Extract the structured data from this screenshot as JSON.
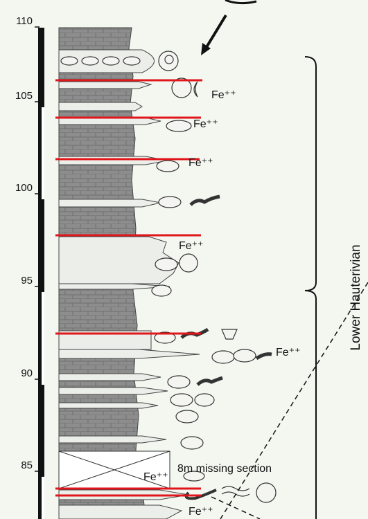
{
  "axis": {
    "ticks": [
      110,
      105,
      100,
      95,
      90,
      85
    ]
  },
  "annotations": {
    "fe": [
      "Fe⁺⁺",
      "Fe⁺⁺",
      "Fe⁺⁺",
      "Fe⁺⁺",
      "Fe⁺⁺",
      "Fe⁺⁺",
      "Fe⁺⁺"
    ],
    "missing": "8m missing section",
    "stage": "Lower Hauterivian"
  }
}
